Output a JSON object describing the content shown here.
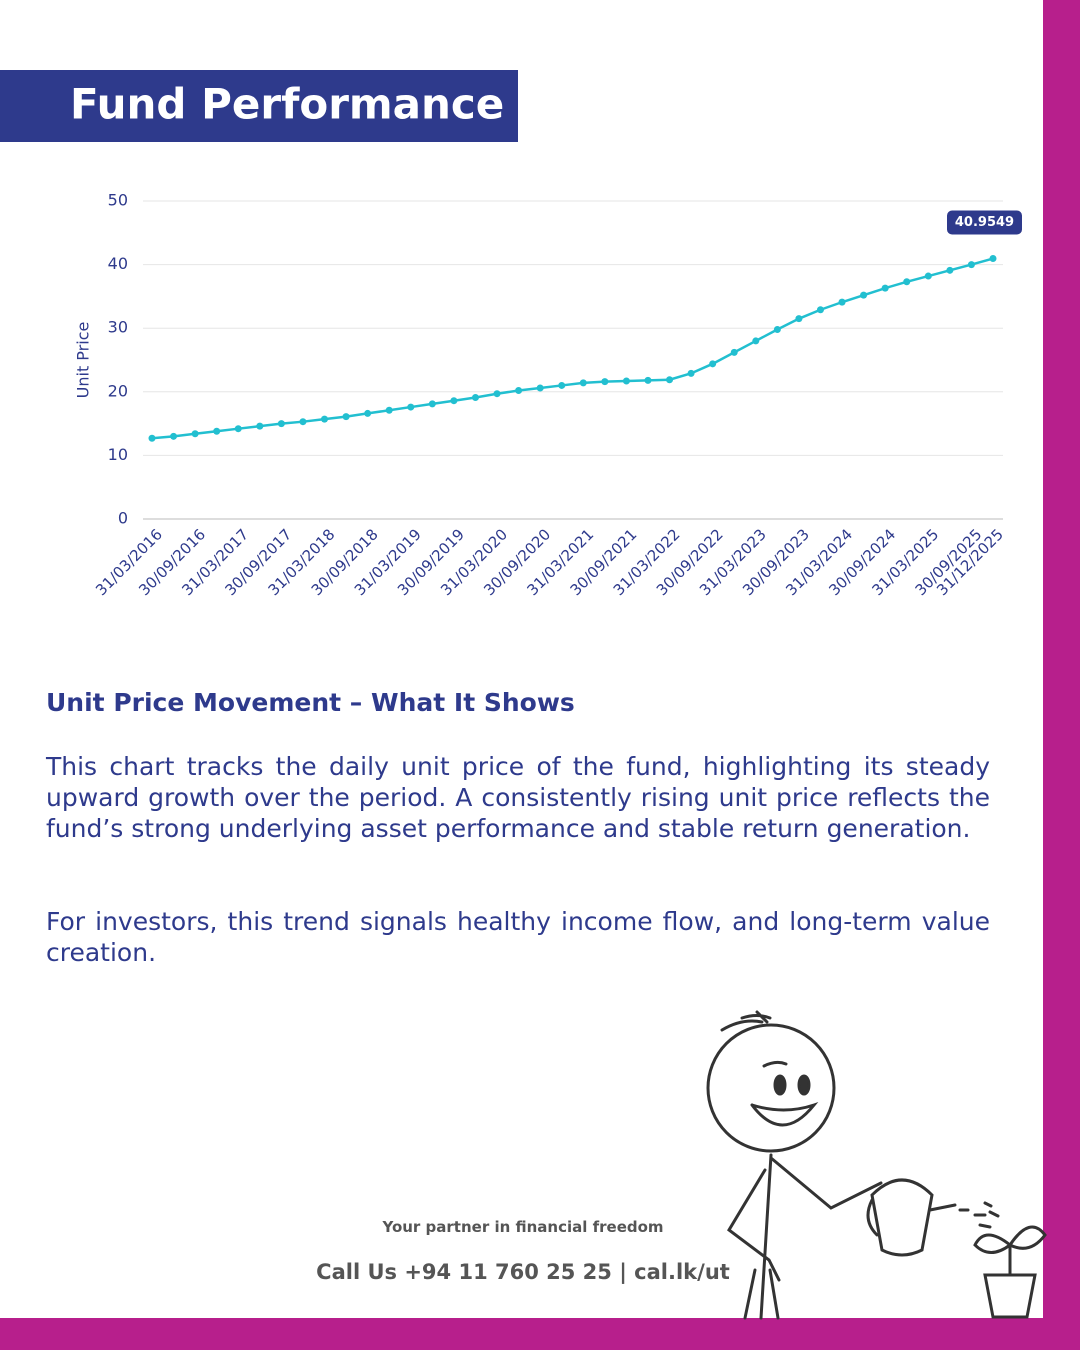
{
  "header": {
    "title": "Fund Performance"
  },
  "chart_data": {
    "type": "line",
    "y_label": "Unit Price",
    "categories": [
      "31/03/2016",
      null,
      "30/09/2016",
      null,
      "31/03/2017",
      null,
      "30/09/2017",
      null,
      "31/03/2018",
      null,
      "30/09/2018",
      null,
      "31/03/2019",
      null,
      "30/09/2019",
      null,
      "31/03/2020",
      null,
      "30/09/2020",
      null,
      "31/03/2021",
      null,
      "30/09/2021",
      null,
      "31/03/2022",
      null,
      "30/09/2022",
      null,
      "31/03/2023",
      null,
      "30/09/2023",
      null,
      "31/03/2024",
      null,
      "30/09/2024",
      null,
      "31/03/2025",
      null,
      "30/09/2025",
      "31/12/2025"
    ],
    "values": [
      12.7,
      13.0,
      13.4,
      13.8,
      14.2,
      14.6,
      15.0,
      15.3,
      15.7,
      16.1,
      16.6,
      17.1,
      17.6,
      18.1,
      18.6,
      19.1,
      19.7,
      20.2,
      20.6,
      21.0,
      21.4,
      21.6,
      21.7,
      21.8,
      21.9,
      22.9,
      24.4,
      26.2,
      28.0,
      29.8,
      31.5,
      32.9,
      34.1,
      35.2,
      36.3,
      37.3,
      38.2,
      39.1,
      40.0,
      40.9549
    ],
    "color": "#22bfd0",
    "ylim": [
      0,
      50
    ],
    "yticks": [
      0,
      10,
      20,
      30,
      40,
      50
    ],
    "grid": true
  },
  "section": {
    "heading": "Unit Price Movement – What It Shows",
    "paragraphs": [
      "This chart tracks the daily unit price of the fund, highlighting its steady upward growth over the period. A consistently rising unit price reflects the fund’s strong underlying asset performance and stable return generation.",
      "For investors, this trend signals healthy income flow, and long-term value creation."
    ]
  },
  "footer": {
    "tagline": "Your partner in financial freedom",
    "contact": "Call Us +94 11 760 25 25 | cal.lk/ut"
  }
}
